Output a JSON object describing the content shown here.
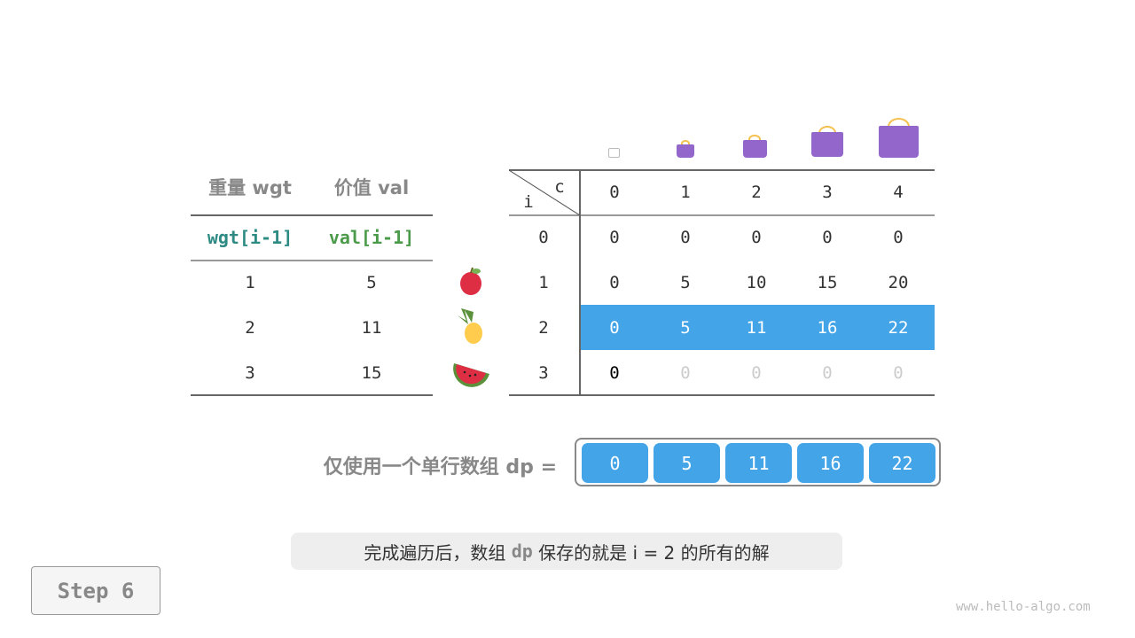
{
  "left_table": {
    "headers": [
      "重量 wgt",
      "价值 val"
    ],
    "subheaders": [
      "wgt[i-1]",
      "val[i-1]"
    ],
    "subheader_colors": [
      "#2e8b84",
      "#4a9a4a"
    ],
    "rows": [
      [
        "1",
        "5"
      ],
      [
        "2",
        "11"
      ],
      [
        "3",
        "15"
      ]
    ],
    "items": [
      "apple-icon",
      "pineapple-icon",
      "watermelon-icon"
    ]
  },
  "dp_table": {
    "corner_col": "c",
    "corner_row": "i",
    "col_headers": [
      "0",
      "1",
      "2",
      "3",
      "4"
    ],
    "row_headers": [
      "0",
      "1",
      "2",
      "3"
    ],
    "rows": [
      [
        "0",
        "0",
        "0",
        "0",
        "0"
      ],
      [
        "0",
        "5",
        "10",
        "15",
        "20"
      ],
      [
        "0",
        "5",
        "11",
        "16",
        "22"
      ],
      [
        "0",
        "0",
        "0",
        "0",
        "0"
      ]
    ],
    "highlight_row": 2,
    "highlight_color": "#43a4e8",
    "bag_icons": [
      "bag-outline-icon",
      "bag-icon",
      "bag-icon",
      "bag-icon",
      "bag-icon"
    ]
  },
  "dp_array": {
    "label": "仅使用一个单行数组 dp =",
    "values": [
      "0",
      "5",
      "11",
      "16",
      "22"
    ]
  },
  "caption": {
    "pre": "完成遍历后，数组 ",
    "code": "dp",
    "post": " 保存的就是 i = 2 的所有的解"
  },
  "step": "Step 6",
  "watermark": "www.hello-algo.com"
}
